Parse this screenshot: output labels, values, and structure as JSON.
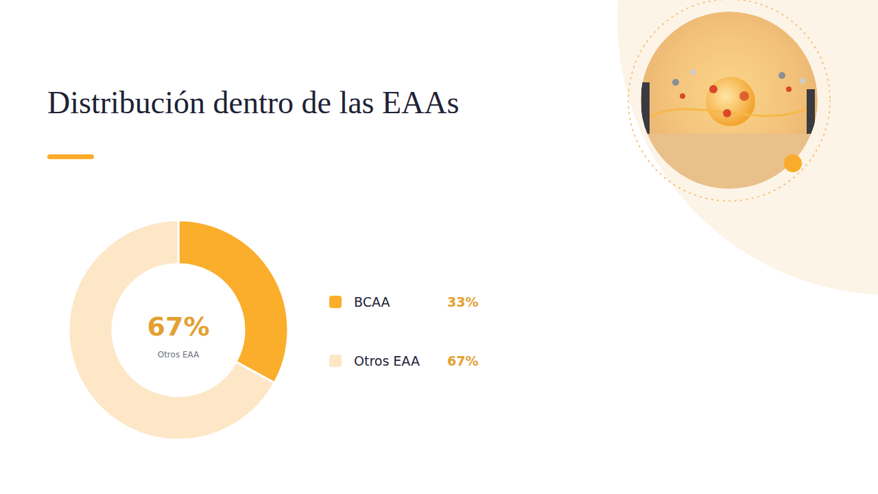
{
  "chart_data": {
    "type": "pie",
    "title": "Distribución dentro de las EAAs",
    "categories": [
      "BCAA",
      "Otros EAA"
    ],
    "values": [
      33,
      67
    ],
    "value_labels": [
      "33%",
      "67%"
    ],
    "colors": [
      "#fbad2c",
      "#fde7c7"
    ],
    "legend": "right",
    "data_labels": true
  }
}
